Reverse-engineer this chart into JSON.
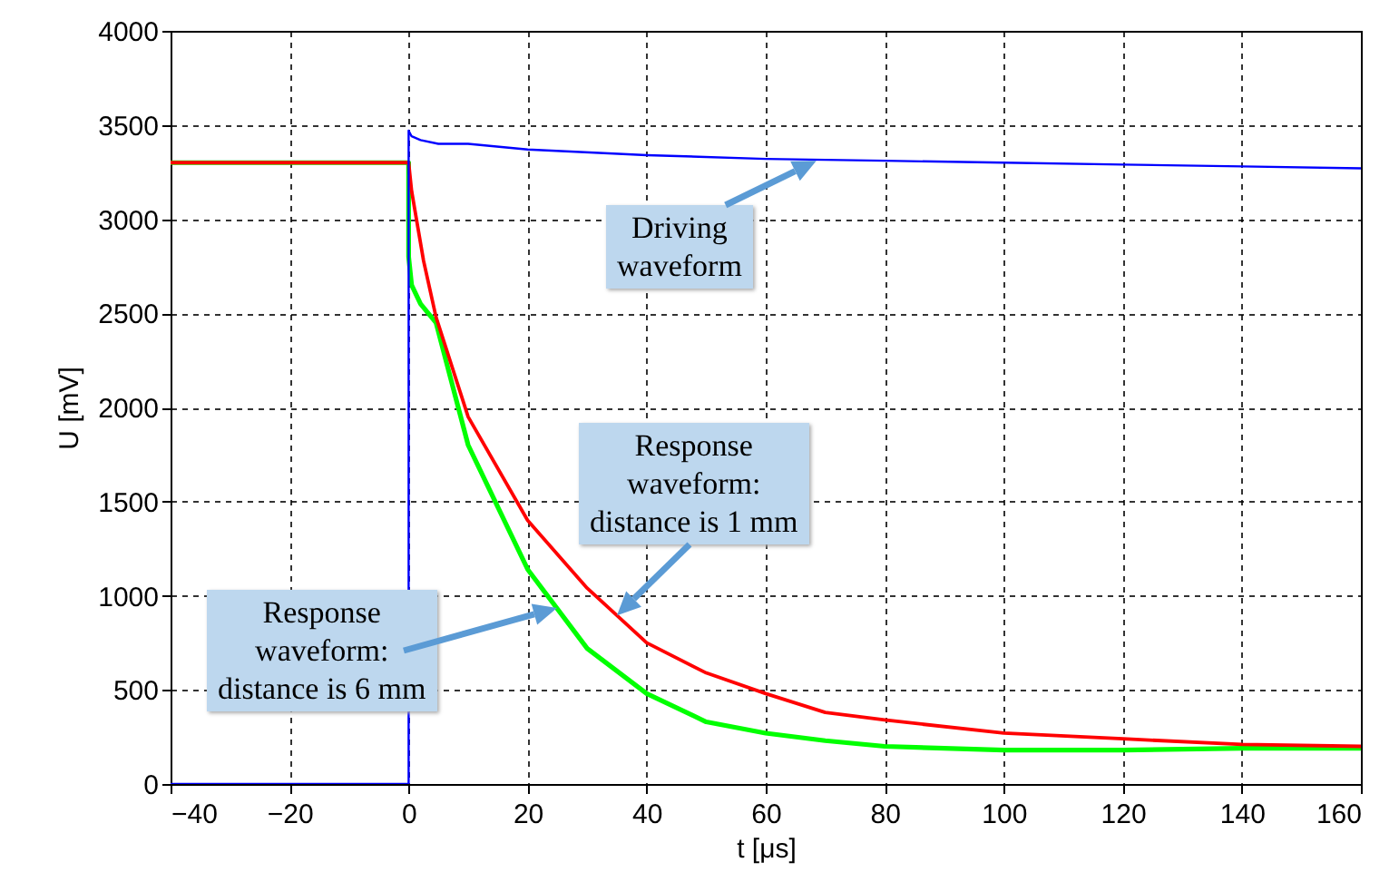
{
  "chart_data": {
    "type": "line",
    "xlabel": "t [μs]",
    "ylabel": "U [mV]",
    "xlim": [
      -40,
      160
    ],
    "xticks": [
      -40,
      -20,
      0,
      20,
      40,
      60,
      80,
      100,
      120,
      140,
      160
    ],
    "ylim": [
      0,
      4000
    ],
    "yticks": [
      0,
      500,
      1000,
      1500,
      2000,
      2500,
      3000,
      3500,
      4000
    ],
    "grid": true,
    "line_style": "solid",
    "marker": "none",
    "series": [
      {
        "color": "#00ff00",
        "x": [
          -40,
          0,
          0,
          0.5,
          2,
          4.6,
          10,
          20,
          30,
          40,
          50,
          60,
          70,
          80,
          100,
          120,
          140,
          160
        ],
        "values": [
          3300,
          3300,
          2800,
          2650,
          2550,
          2450,
          1800,
          1140,
          720,
          480,
          330,
          270,
          230,
          200,
          180,
          180,
          190,
          190
        ]
      },
      {
        "color": "#ff0000",
        "x": [
          -40,
          0,
          0.5,
          2.5,
          4.6,
          10,
          20,
          30,
          40,
          50,
          60,
          70,
          80,
          100,
          120,
          140,
          160
        ],
        "values": [
          3300,
          3300,
          3150,
          2780,
          2480,
          1950,
          1400,
          1040,
          750,
          590,
          480,
          380,
          340,
          270,
          240,
          210,
          200
        ]
      },
      {
        "color": "#0000ff",
        "x": [
          -40,
          0,
          0,
          0.5,
          2,
          5,
          10,
          20,
          40,
          60,
          80,
          100,
          120,
          140,
          160
        ],
        "values": [
          0,
          0,
          3470,
          3440,
          3420,
          3400,
          3400,
          3370,
          3340,
          3320,
          3310,
          3300,
          3290,
          3280,
          3270
        ]
      }
    ],
    "annotations": [
      {
        "text": "Driving\nwaveform",
        "x": 68.5,
        "y": 3310
      },
      {
        "text": "Response\nwaveform:\ndistance is 1 mm",
        "x": 35,
        "y": 895
      },
      "Response\nwaveform:\ndistance is 6 mm"
    ]
  }
}
